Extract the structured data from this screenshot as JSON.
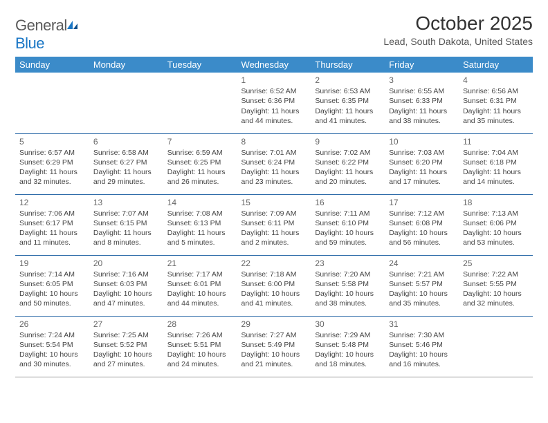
{
  "logo": {
    "word1": "General",
    "word2": "Blue"
  },
  "title": "October 2025",
  "subtitle": "Lead, South Dakota, United States",
  "colors": {
    "header_bg": "#3b8bc9",
    "header_text": "#ffffff",
    "row_border": "#2b6aa8",
    "logo_blue": "#1976c5",
    "text": "#333333"
  },
  "weekdays": [
    "Sunday",
    "Monday",
    "Tuesday",
    "Wednesday",
    "Thursday",
    "Friday",
    "Saturday"
  ],
  "days": [
    {
      "n": 1,
      "sr": "6:52 AM",
      "ss": "6:36 PM",
      "dl": "11 hours and 44 minutes."
    },
    {
      "n": 2,
      "sr": "6:53 AM",
      "ss": "6:35 PM",
      "dl": "11 hours and 41 minutes."
    },
    {
      "n": 3,
      "sr": "6:55 AM",
      "ss": "6:33 PM",
      "dl": "11 hours and 38 minutes."
    },
    {
      "n": 4,
      "sr": "6:56 AM",
      "ss": "6:31 PM",
      "dl": "11 hours and 35 minutes."
    },
    {
      "n": 5,
      "sr": "6:57 AM",
      "ss": "6:29 PM",
      "dl": "11 hours and 32 minutes."
    },
    {
      "n": 6,
      "sr": "6:58 AM",
      "ss": "6:27 PM",
      "dl": "11 hours and 29 minutes."
    },
    {
      "n": 7,
      "sr": "6:59 AM",
      "ss": "6:25 PM",
      "dl": "11 hours and 26 minutes."
    },
    {
      "n": 8,
      "sr": "7:01 AM",
      "ss": "6:24 PM",
      "dl": "11 hours and 23 minutes."
    },
    {
      "n": 9,
      "sr": "7:02 AM",
      "ss": "6:22 PM",
      "dl": "11 hours and 20 minutes."
    },
    {
      "n": 10,
      "sr": "7:03 AM",
      "ss": "6:20 PM",
      "dl": "11 hours and 17 minutes."
    },
    {
      "n": 11,
      "sr": "7:04 AM",
      "ss": "6:18 PM",
      "dl": "11 hours and 14 minutes."
    },
    {
      "n": 12,
      "sr": "7:06 AM",
      "ss": "6:17 PM",
      "dl": "11 hours and 11 minutes."
    },
    {
      "n": 13,
      "sr": "7:07 AM",
      "ss": "6:15 PM",
      "dl": "11 hours and 8 minutes."
    },
    {
      "n": 14,
      "sr": "7:08 AM",
      "ss": "6:13 PM",
      "dl": "11 hours and 5 minutes."
    },
    {
      "n": 15,
      "sr": "7:09 AM",
      "ss": "6:11 PM",
      "dl": "11 hours and 2 minutes."
    },
    {
      "n": 16,
      "sr": "7:11 AM",
      "ss": "6:10 PM",
      "dl": "10 hours and 59 minutes."
    },
    {
      "n": 17,
      "sr": "7:12 AM",
      "ss": "6:08 PM",
      "dl": "10 hours and 56 minutes."
    },
    {
      "n": 18,
      "sr": "7:13 AM",
      "ss": "6:06 PM",
      "dl": "10 hours and 53 minutes."
    },
    {
      "n": 19,
      "sr": "7:14 AM",
      "ss": "6:05 PM",
      "dl": "10 hours and 50 minutes."
    },
    {
      "n": 20,
      "sr": "7:16 AM",
      "ss": "6:03 PM",
      "dl": "10 hours and 47 minutes."
    },
    {
      "n": 21,
      "sr": "7:17 AM",
      "ss": "6:01 PM",
      "dl": "10 hours and 44 minutes."
    },
    {
      "n": 22,
      "sr": "7:18 AM",
      "ss": "6:00 PM",
      "dl": "10 hours and 41 minutes."
    },
    {
      "n": 23,
      "sr": "7:20 AM",
      "ss": "5:58 PM",
      "dl": "10 hours and 38 minutes."
    },
    {
      "n": 24,
      "sr": "7:21 AM",
      "ss": "5:57 PM",
      "dl": "10 hours and 35 minutes."
    },
    {
      "n": 25,
      "sr": "7:22 AM",
      "ss": "5:55 PM",
      "dl": "10 hours and 32 minutes."
    },
    {
      "n": 26,
      "sr": "7:24 AM",
      "ss": "5:54 PM",
      "dl": "10 hours and 30 minutes."
    },
    {
      "n": 27,
      "sr": "7:25 AM",
      "ss": "5:52 PM",
      "dl": "10 hours and 27 minutes."
    },
    {
      "n": 28,
      "sr": "7:26 AM",
      "ss": "5:51 PM",
      "dl": "10 hours and 24 minutes."
    },
    {
      "n": 29,
      "sr": "7:27 AM",
      "ss": "5:49 PM",
      "dl": "10 hours and 21 minutes."
    },
    {
      "n": 30,
      "sr": "7:29 AM",
      "ss": "5:48 PM",
      "dl": "10 hours and 18 minutes."
    },
    {
      "n": 31,
      "sr": "7:30 AM",
      "ss": "5:46 PM",
      "dl": "10 hours and 16 minutes."
    }
  ],
  "labels": {
    "sunrise": "Sunrise:",
    "sunset": "Sunset:",
    "daylight": "Daylight:"
  },
  "first_day_col": 3
}
